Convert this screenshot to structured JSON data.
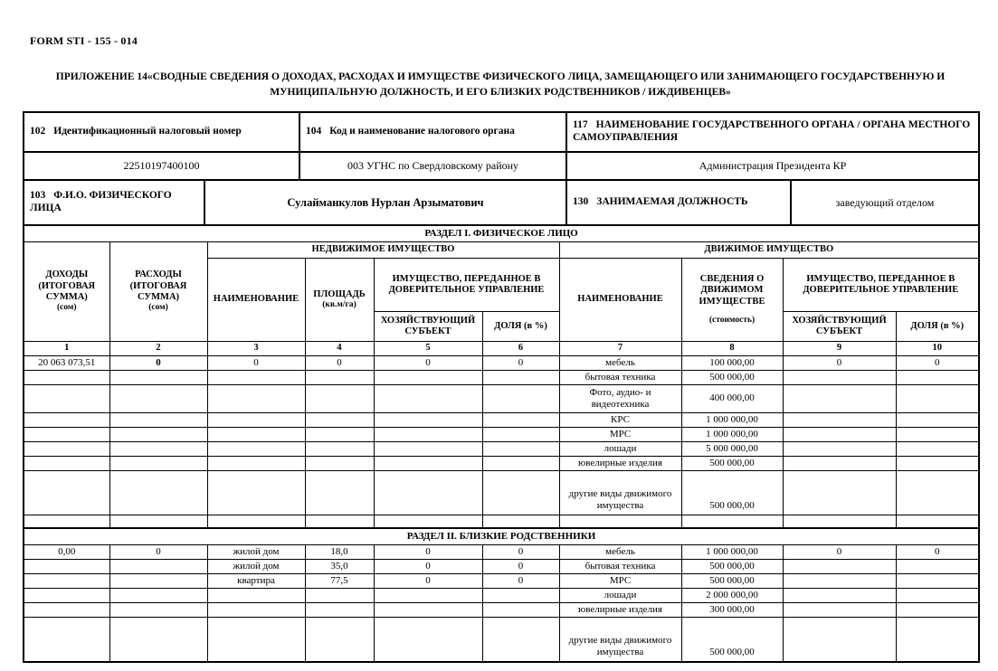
{
  "page": {
    "form_number": "FORM STI - 155 - 014",
    "title": "ПРИЛОЖЕНИЕ 14«СВОДНЫЕ СВЕДЕНИЯ О ДОХОДАХ, РАСХОДАХ И ИМУЩЕСТВЕ ФИЗИЧЕСКОГО ЛИЦА, ЗАМЕЩАЮЩЕГО ИЛИ ЗАНИМАЮЩЕГО ГОСУДАРСТВЕННУЮ И МУНИЦИПАЛЬНУЮ ДОЛЖНОСТЬ, И ЕГО БЛИЗКИХ РОДСТВЕННИКОВ / ИЖДИВЕНЦЕВ»"
  },
  "fields": {
    "tin": {
      "code": "102",
      "label": "Идентификационный налоговый номер",
      "value": "22510197400100"
    },
    "tax_org": {
      "code": "104",
      "label": "Код и наименование налогового органа",
      "value": "003 УГНС по Свердловскому району"
    },
    "gov_org": {
      "code": "117",
      "label": "НАИМЕНОВАНИЕ ГОСУДАРСТВЕННОГО ОРГАНА / ОРГАНА МЕСТНОГО САМОУПРАВЛЕНИЯ",
      "value": "Администрация Президента КР"
    },
    "fio": {
      "code": "103",
      "label": "Ф.И.О. ФИЗИЧЕСКОГО ЛИЦА",
      "value": "Сулайманкулов Нурлан Арзыматович"
    },
    "position": {
      "code": "130",
      "label": "ЗАНИМАЕМАЯ ДОЛЖНОСТЬ",
      "value": "заведующий отделом"
    }
  },
  "table": {
    "section1_title": "РАЗДЕЛ I. ФИЗИЧЕСКОЕ ЛИЦО",
    "section2_title": "РАЗДЕЛ II. БЛИЗКИЕ РОДСТВЕННИКИ",
    "headers": {
      "incomes_main": "ДОХОДЫ (ИТОГОВАЯ СУММА)",
      "incomes_sub": "(сом)",
      "expenses_main": "РАСХОДЫ (ИТОГОВАЯ СУММА)",
      "expenses_sub": "(сом)",
      "immovable_group": "НЕДВИЖИМОЕ ИМУЩЕСТВО",
      "movable_group": "ДВИЖИМОЕ ИМУЩЕСТВО",
      "name": "НАИМЕНОВАНИЕ",
      "area_main": "ПЛОЩАДЬ",
      "area_sub": "(кв.м/га)",
      "trust_group": "ИМУЩЕСТВО, ПЕРЕДАННОЕ В ДОВЕРИТЕЛЬНОЕ УПРАВЛЕНИЕ",
      "business_entity": "ХОЗЯЙСТВУЮЩИЙ СУБЪЕКТ",
      "share": "ДОЛЯ (в %)",
      "movable_info_main": "СВЕДЕНИЯ О ДВИЖИМОМ ИМУЩЕСТВЕ",
      "movable_info_sub": "(стоимость)"
    },
    "col_numbers": [
      "1",
      "2",
      "3",
      "4",
      "5",
      "6",
      "7",
      "8",
      "9",
      "10"
    ],
    "section1_rows": [
      [
        "20 063 073,51",
        "0",
        "0",
        "0",
        "0",
        "0",
        "мебель",
        "100 000,00",
        "0",
        "0"
      ],
      [
        "",
        "",
        "",
        "",
        "",
        "",
        "бытовая техника",
        "500 000,00",
        "",
        ""
      ],
      [
        "",
        "",
        "",
        "",
        "",
        "",
        "Фото, аудио- и видеотехника",
        "400 000,00",
        "",
        ""
      ],
      [
        "",
        "",
        "",
        "",
        "",
        "",
        "КРС",
        "1 000 000,00",
        "",
        ""
      ],
      [
        "",
        "",
        "",
        "",
        "",
        "",
        "МРС",
        "1 000 000,00",
        "",
        ""
      ],
      [
        "",
        "",
        "",
        "",
        "",
        "",
        "лошади",
        "5 000 000,00",
        "",
        ""
      ],
      [
        "",
        "",
        "",
        "",
        "",
        "",
        "ювелирные изделия",
        "500 000,00",
        "",
        ""
      ],
      [
        "",
        "",
        "",
        "",
        "",
        "",
        "другие виды движимого имущества",
        "500 000,00",
        "",
        ""
      ],
      [
        "",
        "",
        "",
        "",
        "",
        "",
        "",
        "",
        "",
        ""
      ]
    ],
    "section2_rows": [
      [
        "0,00",
        "0",
        "жилой дом",
        "18,0",
        "0",
        "0",
        "мебель",
        "1 000 000,00",
        "0",
        "0"
      ],
      [
        "",
        "",
        "жилой дом",
        "35,0",
        "0",
        "0",
        "бытовая техника",
        "500 000,00",
        "",
        ""
      ],
      [
        "",
        "",
        "квартира",
        "77,5",
        "0",
        "0",
        "МРС",
        "500 000,00",
        "",
        ""
      ],
      [
        "",
        "",
        "",
        "",
        "",
        "",
        "лошади",
        "2 000 000,00",
        "",
        ""
      ],
      [
        "",
        "",
        "",
        "",
        "",
        "",
        "ювелирные изделия",
        "300 000,00",
        "",
        ""
      ],
      [
        "",
        "",
        "",
        "",
        "",
        "",
        "другие виды движимого имущества",
        "500 000,00",
        "",
        ""
      ]
    ]
  }
}
